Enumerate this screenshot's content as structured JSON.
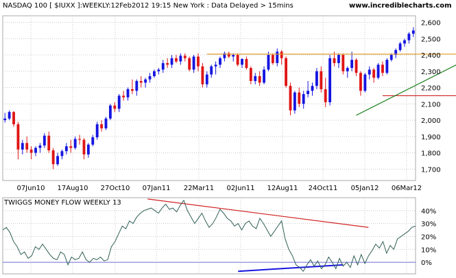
{
  "header": {
    "title": "NASDAQ 100 [ $IUXX ]:WEEKLY:12Feb2012 19:15 New York  : Data Delayed > 15mins",
    "site": "www.incrediblecharts.com"
  },
  "indicator": {
    "title": "TWIGGS MONEY FLOW WEEKLY 13"
  },
  "colors": {
    "up": "#1515e0",
    "down": "#e01515",
    "grid": "#c8c8c8",
    "resistance": "#e0a030",
    "support": "#d02020",
    "uptrend": "#208020",
    "money_flow": "#2f5f55",
    "divergence_top": "#d02020",
    "divergence_bottom": "#1515e0",
    "zero_line": "#6b6bcf"
  },
  "chart_data": [
    {
      "type": "candlestick",
      "title": "NASDAQ 100 [ $IUXX ]:WEEKLY:12Feb2012 19:15 New York  : Data Delayed > 15mins",
      "x_tick_labels": [
        "07Jun10",
        "17Aug10",
        "27Oct10",
        "07Jan11",
        "22Mar11",
        "02Jun11",
        "12Aug11",
        "24Oct11",
        "05Jan12",
        "06Mar12"
      ],
      "y_ticks": [
        1700,
        1800,
        1900,
        2000,
        2100,
        2200,
        2300,
        2400,
        2500,
        2600
      ],
      "y_tick_labels": [
        "1,700",
        "1,800",
        "1,900",
        "2,000",
        "2,100",
        "2,200",
        "2,300",
        "2,400",
        "2,500",
        "2,600"
      ],
      "ylim": [
        1630,
        2640
      ],
      "grid": true,
      "candles": [
        [
          2000,
          2045,
          1985,
          2010
        ],
        [
          2010,
          2060,
          2000,
          2050
        ],
        [
          2050,
          2055,
          1960,
          1975
        ],
        [
          1975,
          1990,
          1760,
          1820
        ],
        [
          1820,
          1880,
          1790,
          1860
        ],
        [
          1860,
          1900,
          1800,
          1820
        ],
        [
          1820,
          1840,
          1760,
          1800
        ],
        [
          1800,
          1840,
          1780,
          1830
        ],
        [
          1830,
          1860,
          1800,
          1845
        ],
        [
          1845,
          1920,
          1830,
          1905
        ],
        [
          1905,
          1930,
          1800,
          1815
        ],
        [
          1815,
          1830,
          1700,
          1730
        ],
        [
          1730,
          1800,
          1720,
          1780
        ],
        [
          1780,
          1820,
          1760,
          1810
        ],
        [
          1810,
          1860,
          1790,
          1840
        ],
        [
          1840,
          1880,
          1800,
          1830
        ],
        [
          1830,
          1900,
          1820,
          1885
        ],
        [
          1885,
          1910,
          1850,
          1880
        ],
        [
          1880,
          1890,
          1760,
          1790
        ],
        [
          1790,
          1860,
          1770,
          1850
        ],
        [
          1850,
          1910,
          1840,
          1895
        ],
        [
          1895,
          1990,
          1880,
          1975
        ],
        [
          1975,
          2000,
          1930,
          1950
        ],
        [
          1950,
          2020,
          1940,
          2010
        ],
        [
          2010,
          2100,
          2000,
          2090
        ],
        [
          2090,
          2110,
          2050,
          2070
        ],
        [
          2070,
          2160,
          2050,
          2150
        ],
        [
          2150,
          2180,
          2120,
          2140
        ],
        [
          2140,
          2200,
          2120,
          2190
        ],
        [
          2190,
          2250,
          2160,
          2180
        ],
        [
          2180,
          2250,
          2150,
          2240
        ],
        [
          2240,
          2270,
          2200,
          2230
        ],
        [
          2230,
          2260,
          2200,
          2250
        ],
        [
          2250,
          2290,
          2230,
          2270
        ],
        [
          2270,
          2310,
          2260,
          2300
        ],
        [
          2300,
          2320,
          2280,
          2310
        ],
        [
          2310,
          2370,
          2290,
          2350
        ],
        [
          2350,
          2380,
          2320,
          2340
        ],
        [
          2340,
          2400,
          2320,
          2380
        ],
        [
          2380,
          2400,
          2350,
          2360
        ],
        [
          2360,
          2410,
          2340,
          2395
        ],
        [
          2395,
          2410,
          2360,
          2380
        ],
        [
          2380,
          2390,
          2300,
          2310
        ],
        [
          2310,
          2400,
          2290,
          2390
        ],
        [
          2390,
          2410,
          2300,
          2330
        ],
        [
          2330,
          2350,
          2200,
          2220
        ],
        [
          2220,
          2300,
          2200,
          2280
        ],
        [
          2280,
          2340,
          2260,
          2330
        ],
        [
          2330,
          2360,
          2280,
          2340
        ],
        [
          2340,
          2390,
          2320,
          2380
        ],
        [
          2380,
          2420,
          2360,
          2410
        ],
        [
          2410,
          2420,
          2380,
          2390
        ],
        [
          2390,
          2410,
          2360,
          2400
        ],
        [
          2400,
          2410,
          2330,
          2340
        ],
        [
          2340,
          2380,
          2320,
          2375
        ],
        [
          2375,
          2390,
          2310,
          2320
        ],
        [
          2320,
          2330,
          2220,
          2240
        ],
        [
          2240,
          2290,
          2220,
          2270
        ],
        [
          2270,
          2300,
          2210,
          2230
        ],
        [
          2230,
          2330,
          2220,
          2310
        ],
        [
          2310,
          2420,
          2300,
          2400
        ],
        [
          2400,
          2410,
          2340,
          2350
        ],
        [
          2350,
          2440,
          2330,
          2420
        ],
        [
          2420,
          2430,
          2340,
          2380
        ],
        [
          2380,
          2390,
          2200,
          2210
        ],
        [
          2210,
          2230,
          2030,
          2060
        ],
        [
          2060,
          2180,
          2040,
          2170
        ],
        [
          2170,
          2200,
          2080,
          2100
        ],
        [
          2100,
          2180,
          2070,
          2160
        ],
        [
          2160,
          2240,
          2140,
          2180
        ],
        [
          2180,
          2230,
          2150,
          2210
        ],
        [
          2210,
          2320,
          2190,
          2300
        ],
        [
          2300,
          2330,
          2170,
          2190
        ],
        [
          2190,
          2260,
          2080,
          2110
        ],
        [
          2110,
          2400,
          2090,
          2380
        ],
        [
          2380,
          2420,
          2330,
          2350
        ],
        [
          2350,
          2410,
          2320,
          2400
        ],
        [
          2400,
          2410,
          2280,
          2300
        ],
        [
          2300,
          2330,
          2260,
          2320
        ],
        [
          2320,
          2420,
          2300,
          2370
        ],
        [
          2370,
          2380,
          2270,
          2290
        ],
        [
          2290,
          2300,
          2150,
          2180
        ],
        [
          2180,
          2290,
          2170,
          2280
        ],
        [
          2280,
          2330,
          2250,
          2310
        ],
        [
          2310,
          2320,
          2230,
          2260
        ],
        [
          2260,
          2350,
          2250,
          2340
        ],
        [
          2340,
          2360,
          2270,
          2290
        ],
        [
          2290,
          2380,
          2280,
          2370
        ],
        [
          2370,
          2410,
          2360,
          2400
        ],
        [
          2400,
          2440,
          2380,
          2430
        ],
        [
          2430,
          2480,
          2420,
          2470
        ],
        [
          2470,
          2500,
          2450,
          2490
        ],
        [
          2490,
          2540,
          2470,
          2530
        ],
        [
          2530,
          2570,
          2510,
          2550
        ]
      ],
      "lines": [
        {
          "name": "resistance",
          "x": [
            46,
            108
          ],
          "y": [
            2405,
            2405
          ]
        },
        {
          "name": "support",
          "x": [
            86,
            108
          ],
          "y": [
            2150,
            2150
          ]
        },
        {
          "name": "uptrend",
          "x": [
            80,
            108
          ],
          "y": [
            2030,
            2410
          ]
        }
      ]
    },
    {
      "type": "line",
      "title": "TWIGGS MONEY FLOW WEEKLY 13",
      "y_ticks": [
        0,
        10,
        20,
        30,
        40
      ],
      "y_tick_labels": [
        "0%",
        "10%",
        "20%",
        "30%",
        "40%"
      ],
      "ylim": [
        -9,
        50
      ],
      "grid": true,
      "series": [
        {
          "values": [
            25,
            27,
            23,
            16,
            12,
            6,
            8,
            3,
            5,
            12,
            10,
            14,
            10,
            6,
            3,
            2,
            8,
            6,
            -2,
            4,
            2,
            3,
            8,
            2,
            0,
            3,
            2,
            4,
            1,
            2,
            12,
            16,
            22,
            28,
            26,
            32,
            30,
            35,
            38,
            40,
            41,
            42,
            40,
            38,
            42,
            45,
            41,
            42,
            39,
            44,
            48,
            40,
            35,
            30,
            34,
            38,
            32,
            27,
            30,
            35,
            41,
            38,
            34,
            32,
            28,
            30,
            25,
            30,
            32,
            28,
            26,
            34,
            30,
            25,
            20,
            24,
            28,
            32,
            18,
            10,
            5,
            -2,
            -4,
            -7,
            -2,
            2,
            -3,
            1,
            -5,
            -2,
            4,
            0,
            -5,
            3,
            -3,
            0,
            -4,
            5,
            -2,
            6,
            -1,
            5,
            9,
            14,
            11,
            16,
            7,
            13,
            10,
            18,
            20,
            22,
            24,
            27,
            28
          ]
        }
      ],
      "lines": [
        {
          "name": "divergence-top",
          "x": [
            40,
            101
          ],
          "y": [
            49,
            27
          ]
        },
        {
          "name": "divergence-bottom",
          "x": [
            65,
            94
          ],
          "y": [
            -7,
            -2
          ]
        }
      ]
    }
  ]
}
